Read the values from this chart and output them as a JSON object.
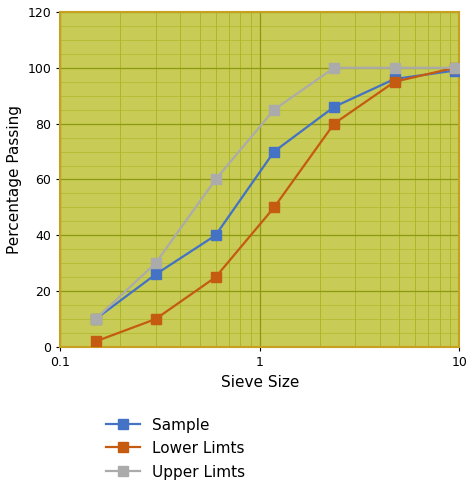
{
  "sample_x": [
    0.15,
    0.3,
    0.6,
    1.18,
    2.36,
    4.75,
    9.5
  ],
  "sample_y": [
    10,
    26,
    40,
    70,
    86,
    96,
    99
  ],
  "lower_x": [
    0.15,
    0.3,
    0.6,
    1.18,
    2.36,
    4.75,
    9.5
  ],
  "lower_y": [
    2,
    10,
    25,
    50,
    80,
    95,
    100
  ],
  "upper_x": [
    0.15,
    0.3,
    0.6,
    1.18,
    2.36,
    4.75,
    9.5
  ],
  "upper_y": [
    10,
    30,
    60,
    85,
    100,
    100,
    100
  ],
  "sample_color": "#4472C4",
  "lower_color": "#C55A11",
  "upper_color": "#ABABAB",
  "plot_bg": "#C8CB56",
  "xlabel": "Sieve Size",
  "ylabel": "Percentage Passing",
  "ylim": [
    0,
    120
  ],
  "xlim": [
    0.1,
    10
  ],
  "legend_labels": [
    "Sample",
    "Lower Limts",
    "Upper Limts"
  ],
  "major_yticks": [
    0,
    20,
    40,
    60,
    80,
    100,
    120
  ],
  "major_grid_color": "#8B9A10",
  "minor_grid_color": "#A8B520",
  "dot_color": "#9FA010",
  "spine_color": "#C8A020",
  "marker_size": 7,
  "linewidth": 1.6
}
